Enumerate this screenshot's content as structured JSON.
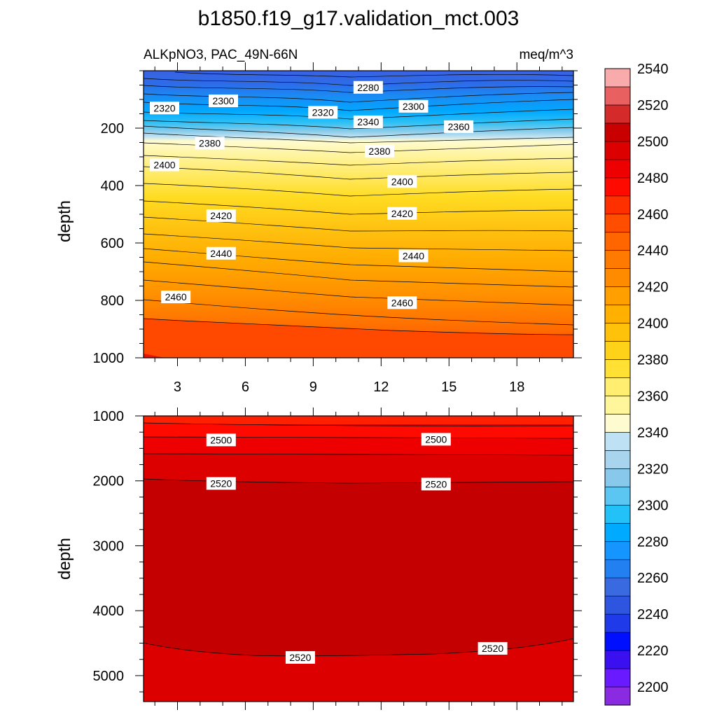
{
  "title": "b1850.f19_g17.validation_mct.003",
  "subtitle_left": "ALKpNO3, PAC_49N-66N",
  "subtitle_right": "meq/m^3",
  "chart_data": [
    {
      "type": "heatmap",
      "panel": "upper",
      "ylabel": "depth",
      "yticks": [
        "200",
        "400",
        "600",
        "800",
        "1000"
      ],
      "ytick_values": [
        200,
        400,
        600,
        800,
        1000
      ],
      "ylim": [
        0,
        1000
      ],
      "xticks": [
        "3",
        "6",
        "9",
        "12",
        "15",
        "18"
      ],
      "xtick_values": [
        3,
        6,
        9,
        12,
        15,
        18
      ],
      "xlim": [
        1.5,
        20.5
      ],
      "contour_labels": [
        {
          "text": "2280",
          "x": 10.5,
          "depth": 58
        },
        {
          "text": "2300",
          "x": 4.1,
          "depth": 105
        },
        {
          "text": "2300",
          "x": 12.5,
          "depth": 124
        },
        {
          "text": "2320",
          "x": 1.5,
          "depth": 130
        },
        {
          "text": "2320",
          "x": 8.5,
          "depth": 145
        },
        {
          "text": "2340",
          "x": 10.5,
          "depth": 178
        },
        {
          "text": "2360",
          "x": 14.5,
          "depth": 195
        },
        {
          "text": "2380",
          "x": 3.5,
          "depth": 252
        },
        {
          "text": "2380",
          "x": 11.0,
          "depth": 280
        },
        {
          "text": "2400",
          "x": 1.5,
          "depth": 328
        },
        {
          "text": "2400",
          "x": 12.0,
          "depth": 386
        },
        {
          "text": "2420",
          "x": 4.0,
          "depth": 505
        },
        {
          "text": "2420",
          "x": 12.0,
          "depth": 497
        },
        {
          "text": "2440",
          "x": 4.0,
          "depth": 636
        },
        {
          "text": "2440",
          "x": 12.5,
          "depth": 645
        },
        {
          "text": "2460",
          "x": 2.0,
          "depth": 788
        },
        {
          "text": "2460",
          "x": 12.0,
          "depth": 808
        }
      ]
    },
    {
      "type": "heatmap",
      "panel": "lower",
      "ylabel": "depth",
      "yticks": [
        "1000",
        "2000",
        "3000",
        "4000",
        "5000"
      ],
      "ytick_values": [
        1000,
        2000,
        3000,
        4000,
        5000
      ],
      "ylim": [
        1000,
        5400
      ],
      "xlim": [
        1.5,
        20.5
      ],
      "contour_labels": [
        {
          "text": "2500",
          "x": 4.0,
          "depth": 1370
        },
        {
          "text": "2500",
          "x": 13.5,
          "depth": 1360
        },
        {
          "text": "2520",
          "x": 4.0,
          "depth": 2040
        },
        {
          "text": "2520",
          "x": 13.5,
          "depth": 2050
        },
        {
          "text": "2520",
          "x": 7.5,
          "depth": 4720
        },
        {
          "text": "2520",
          "x": 16.0,
          "depth": 4580
        }
      ]
    }
  ],
  "colorbar": {
    "labels": [
      "2200",
      "2220",
      "2240",
      "2260",
      "2280",
      "2300",
      "2320",
      "2340",
      "2360",
      "2380",
      "2400",
      "2420",
      "2440",
      "2460",
      "2480",
      "2500",
      "2520",
      "2540"
    ],
    "colors": [
      "#8a2be2",
      "#6a1aff",
      "#3a10f0",
      "#0010ff",
      "#1f3ae8",
      "#2e55e0",
      "#3a6ae0",
      "#2280f0",
      "#1595ff",
      "#00aaff",
      "#22c2f8",
      "#5cc6f2",
      "#88c8ea",
      "#a8d4ee",
      "#bee2f4",
      "#fffbd0",
      "#fff59a",
      "#ffee70",
      "#ffe033",
      "#ffd21a",
      "#ffc20a",
      "#ffb000",
      "#ff9f00",
      "#ff8c00",
      "#ff7a00",
      "#ff6600",
      "#ff4e00",
      "#ff3000",
      "#ff0a00",
      "#ee0000",
      "#dd0000",
      "#c80000",
      "#d42a2a",
      "#e86060",
      "#f9aaaa"
    ]
  }
}
